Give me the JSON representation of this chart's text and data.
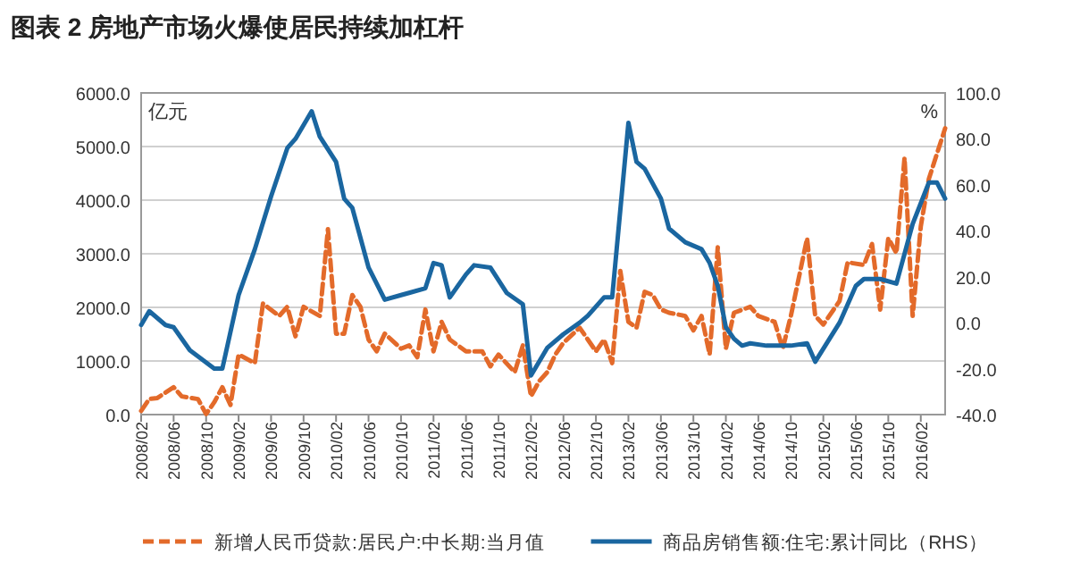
{
  "chart_data": {
    "type": "line",
    "title": "图表 2   房地产市场火爆使居民持续加杠杆",
    "ylabel": "亿元",
    "y2label": "%",
    "xlim": [
      "2008-02",
      "2016-05"
    ],
    "xticks": [
      {
        "value": "2008-02",
        "label": "2008/02"
      },
      {
        "value": "2008-06",
        "label": "2008/06"
      },
      {
        "value": "2008-10",
        "label": "2008/10"
      },
      {
        "value": "2009-02",
        "label": "2009/02"
      },
      {
        "value": "2009-06",
        "label": "2009/06"
      },
      {
        "value": "2009-10",
        "label": "2009/10"
      },
      {
        "value": "2010-02",
        "label": "2010/02"
      },
      {
        "value": "2010-06",
        "label": "2010/06"
      },
      {
        "value": "2010-10",
        "label": "2010/10"
      },
      {
        "value": "2011-02",
        "label": "2011/02"
      },
      {
        "value": "2011-06",
        "label": "2011/06"
      },
      {
        "value": "2011-10",
        "label": "2011/10"
      },
      {
        "value": "2012-02",
        "label": "2012/02"
      },
      {
        "value": "2012-06",
        "label": "2012/06"
      },
      {
        "value": "2012-10",
        "label": "2012/10"
      },
      {
        "value": "2013-02",
        "label": "2013/02"
      },
      {
        "value": "2013-06",
        "label": "2013/06"
      },
      {
        "value": "2013-10",
        "label": "2013/10"
      },
      {
        "value": "2014-02",
        "label": "2014/02"
      },
      {
        "value": "2014-06",
        "label": "2014/06"
      },
      {
        "value": "2014-10",
        "label": "2014/10"
      },
      {
        "value": "2015-02",
        "label": "2015/02"
      },
      {
        "value": "2015-06",
        "label": "2015/06"
      },
      {
        "value": "2015-10",
        "label": "2015/10"
      },
      {
        "value": "2016-02",
        "label": "2016/02"
      }
    ],
    "ylim": [
      0,
      6000
    ],
    "yticks": [
      {
        "value": 0,
        "label": "0.0"
      },
      {
        "value": 1000,
        "label": "1000.0"
      },
      {
        "value": 2000,
        "label": "2000.0"
      },
      {
        "value": 3000,
        "label": "3000.0"
      },
      {
        "value": 4000,
        "label": "4000.0"
      },
      {
        "value": 5000,
        "label": "5000.0"
      },
      {
        "value": 6000,
        "label": "6000.0"
      }
    ],
    "y2lim": [
      -40,
      100
    ],
    "y2ticks": [
      {
        "value": -40,
        "label": "-40.0"
      },
      {
        "value": -20,
        "label": "-20.0"
      },
      {
        "value": 0,
        "label": "0.0"
      },
      {
        "value": 20,
        "label": "20.0"
      },
      {
        "value": 40,
        "label": "40.0"
      },
      {
        "value": 60,
        "label": "60.0"
      },
      {
        "value": 80,
        "label": "80.0"
      },
      {
        "value": 100,
        "label": "100.0"
      }
    ],
    "grid": "y",
    "legend": "bottom",
    "series": [
      {
        "name": "新增人民币贷款:居民户:中长期:当月值",
        "color": "#e36a2a",
        "line_style": "dashed",
        "axis": "y",
        "x": [
          "2008-02",
          "2008-03",
          "2008-04",
          "2008-06",
          "2008-07",
          "2008-09",
          "2008-10",
          "2008-11",
          "2008-12",
          "2009-01",
          "2009-02",
          "2009-04",
          "2009-05",
          "2009-07",
          "2009-08",
          "2009-09",
          "2009-10",
          "2009-12",
          "2010-01",
          "2010-02",
          "2010-03",
          "2010-04",
          "2010-05",
          "2010-06",
          "2010-07",
          "2010-08",
          "2010-10",
          "2010-11",
          "2010-12",
          "2011-01",
          "2011-02",
          "2011-03",
          "2011-04",
          "2011-06",
          "2011-08",
          "2011-09",
          "2011-10",
          "2011-12",
          "2012-01",
          "2012-02",
          "2012-03",
          "2012-04",
          "2012-05",
          "2012-06",
          "2012-08",
          "2012-09",
          "2012-10",
          "2012-11",
          "2012-12",
          "2013-01",
          "2013-02",
          "2013-03",
          "2013-04",
          "2013-05",
          "2013-06",
          "2013-07",
          "2013-09",
          "2013-10",
          "2013-11",
          "2013-12",
          "2014-01",
          "2014-02",
          "2014-03",
          "2014-05",
          "2014-06",
          "2014-08",
          "2014-09",
          "2014-10",
          "2014-12",
          "2015-01",
          "2015-02",
          "2015-04",
          "2015-05",
          "2015-07",
          "2015-08",
          "2015-09",
          "2015-10",
          "2015-11",
          "2015-12",
          "2016-01",
          "2016-02",
          "2016-03",
          "2016-05"
        ],
        "values": [
          70,
          290,
          310,
          510,
          340,
          290,
          10,
          230,
          510,
          180,
          1120,
          960,
          2070,
          1840,
          2010,
          1460,
          2010,
          1840,
          3460,
          1510,
          1510,
          2230,
          2010,
          1400,
          1180,
          1510,
          1230,
          1290,
          1070,
          1960,
          1180,
          1730,
          1400,
          1180,
          1180,
          900,
          1120,
          790,
          1290,
          340,
          620,
          790,
          1120,
          1340,
          1620,
          1400,
          1180,
          1400,
          960,
          2680,
          1730,
          1620,
          2290,
          2230,
          1960,
          1900,
          1840,
          1570,
          1840,
          1120,
          3120,
          1230,
          1900,
          2010,
          1840,
          1730,
          1230,
          1840,
          3290,
          1840,
          1680,
          2120,
          2840,
          2790,
          3180,
          1960,
          3290,
          3010,
          4790,
          1840,
          3510,
          4400,
          5340
        ]
      },
      {
        "name": "商品房销售额:住宅:累计同比（RHS）",
        "color": "#1a66a0",
        "line_style": "solid",
        "axis": "y2",
        "x": [
          "2008-02",
          "2008-03",
          "2008-05",
          "2008-06",
          "2008-08",
          "2008-11",
          "2008-12",
          "2009-02",
          "2009-04",
          "2009-06",
          "2009-08",
          "2009-09",
          "2009-11",
          "2009-12",
          "2010-02",
          "2010-03",
          "2010-04",
          "2010-06",
          "2010-08",
          "2010-10",
          "2010-11",
          "2011-01",
          "2011-02",
          "2011-03",
          "2011-04",
          "2011-06",
          "2011-07",
          "2011-09",
          "2011-11",
          "2012-01",
          "2012-02",
          "2012-04",
          "2012-06",
          "2012-08",
          "2012-09",
          "2012-10",
          "2012-11",
          "2012-12",
          "2013-02",
          "2013-03",
          "2013-04",
          "2013-06",
          "2013-07",
          "2013-09",
          "2013-11",
          "2013-12",
          "2014-01",
          "2014-02",
          "2014-03",
          "2014-04",
          "2014-05",
          "2014-07",
          "2014-10",
          "2014-12",
          "2015-01",
          "2015-04",
          "2015-06",
          "2015-07",
          "2015-09",
          "2015-11",
          "2016-01",
          "2016-03",
          "2016-04",
          "2016-05"
        ],
        "values": [
          -1,
          5,
          -1,
          -2,
          -12,
          -20,
          -20,
          12,
          32,
          55,
          76,
          80,
          92,
          81,
          70,
          54,
          50,
          24,
          10,
          12,
          13,
          15,
          26,
          25,
          11,
          21,
          25,
          24,
          13,
          8,
          -23,
          -11,
          -5,
          0,
          3,
          7,
          11,
          11,
          87,
          70,
          67,
          54,
          41,
          35,
          32,
          26,
          16,
          -2,
          -7,
          -10,
          -9,
          -10,
          -10,
          -9,
          -17,
          0,
          16,
          19,
          19,
          17,
          43,
          61,
          61,
          54
        ]
      }
    ]
  }
}
